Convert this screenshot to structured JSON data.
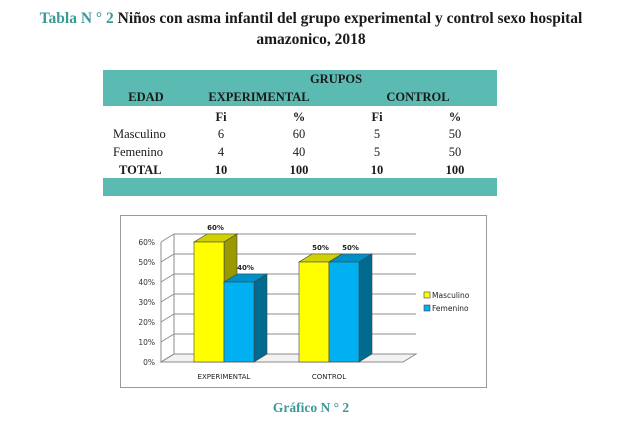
{
  "title": {
    "label": "Tabla N ° 2",
    "text": "Niños con asma infantil del grupo experimental y control sexo hospital",
    "text_line2": "amazonico, 2018"
  },
  "table": {
    "header_groups": "GRUPOS",
    "header_edad": "EDAD",
    "header_experimental": "EXPERIMENTAL",
    "header_control": "CONTROL",
    "sub_headers": [
      "Fi",
      "%",
      "Fi",
      "%"
    ],
    "rows": [
      {
        "label": "Masculino",
        "values": [
          "6",
          "60",
          "5",
          "50"
        ]
      },
      {
        "label": "Femenino",
        "values": [
          "4",
          "40",
          "5",
          "50"
        ]
      },
      {
        "label": "TOTAL",
        "values": [
          "10",
          "100",
          "10",
          "100"
        ]
      }
    ]
  },
  "chart_data": {
    "type": "bar",
    "categories": [
      "EXPERIMENTAL",
      "CONTROL"
    ],
    "series": [
      {
        "name": "Masculino",
        "values": [
          60,
          50
        ],
        "labels": [
          "60%",
          "50%"
        ],
        "color": "#ffff00"
      },
      {
        "name": "Femenino",
        "values": [
          40,
          50
        ],
        "labels": [
          "40%",
          "50%"
        ],
        "color": "#00b0f0"
      }
    ],
    "ylim": [
      0,
      60
    ],
    "yticks": [
      "0%",
      "10%",
      "20%",
      "30%",
      "40%",
      "50%",
      "60%"
    ],
    "legend": "right",
    "grid": true,
    "style": "3d"
  },
  "caption": "Gráfico N ° 2"
}
